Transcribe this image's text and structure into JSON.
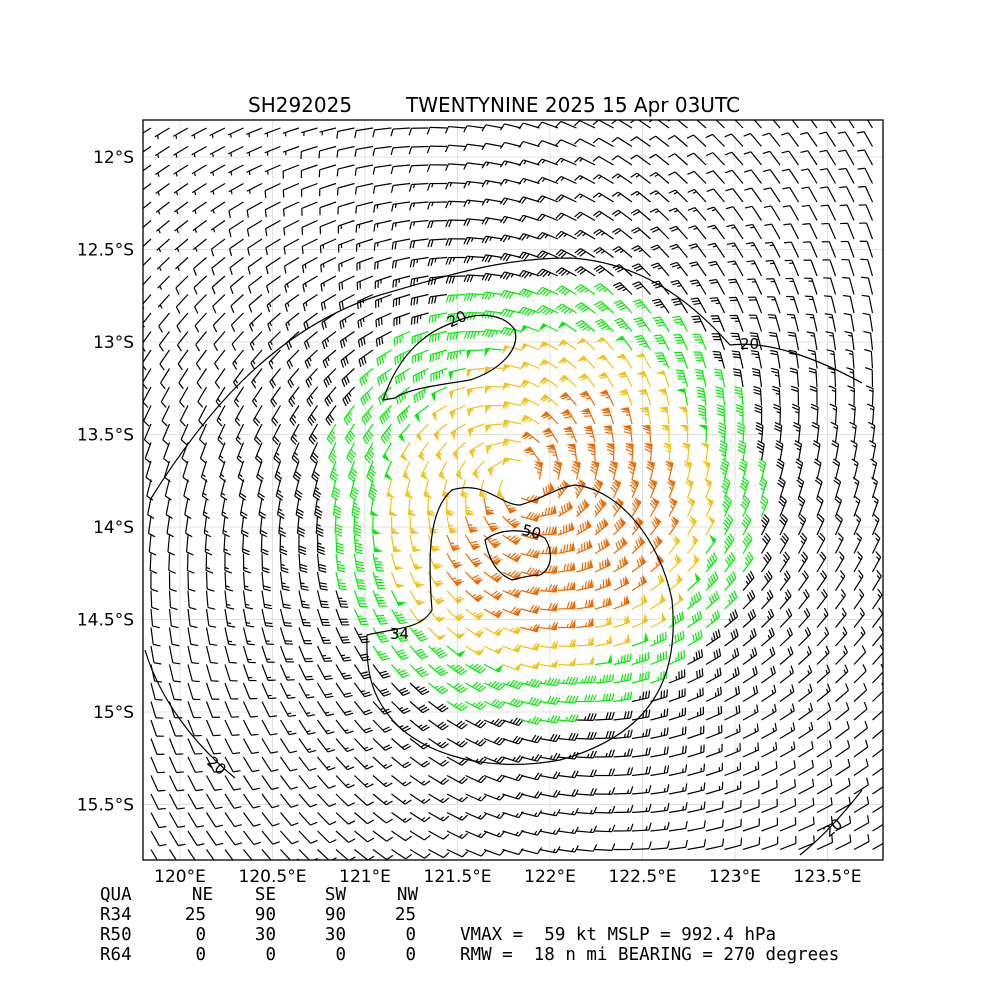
{
  "chart_data": {
    "type": "wind_barb_map",
    "title_left": "SH292025",
    "title_right": "TWENTYNINE 2025 15 Apr 03UTC",
    "x_ticks": [
      "120°E",
      "120.5°E",
      "121°E",
      "121.5°E",
      "122°E",
      "122.5°E",
      "123°E",
      "123.5°E"
    ],
    "x_tick_values": [
      120,
      120.5,
      121,
      121.5,
      122,
      122.5,
      123,
      123.5
    ],
    "y_ticks": [
      "12°S",
      "12.5°S",
      "13°S",
      "13.5°S",
      "14°S",
      "14.5°S",
      "15°S",
      "15.5°S"
    ],
    "y_tick_values": [
      -12,
      -12.5,
      -13,
      -13.5,
      -14,
      -14.5,
      -15,
      -15.5
    ],
    "xlim": [
      119.8,
      123.8
    ],
    "ylim": [
      -15.8,
      -11.8
    ],
    "grid": true,
    "center": {
      "lon": 121.85,
      "lat": -13.75
    },
    "contours": [
      {
        "level": 20,
        "label": "20"
      },
      {
        "level": 34,
        "label": "34"
      },
      {
        "level": 50,
        "label": "50"
      }
    ],
    "barb_colors": {
      "below_34": "#000000",
      "r34": "#00ee00",
      "r50": "#f2c218",
      "r64": "#ee6a00"
    },
    "table": {
      "header": [
        "QUA",
        "NE",
        "SE",
        "SW",
        "NW"
      ],
      "rows": [
        {
          "label": "R34",
          "values": [
            "25",
            "90",
            "90",
            "25"
          ]
        },
        {
          "label": "R50",
          "values": [
            "0",
            "30",
            "30",
            "0"
          ]
        },
        {
          "label": "R64",
          "values": [
            "0",
            "0",
            "0",
            "0"
          ]
        }
      ]
    },
    "summary": {
      "line1": "VMAX =  59 kt MSLP = 992.4 hPa",
      "line2": "RMW =  18 n mi BEARING = 270 degrees"
    }
  }
}
